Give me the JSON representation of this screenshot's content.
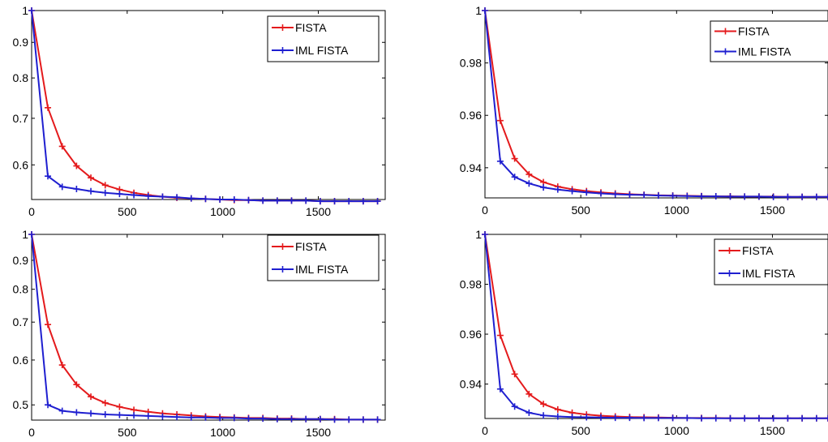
{
  "figure": {
    "background": "#ffffff",
    "red": "#e41a1c",
    "blue": "#1f1fd0"
  },
  "chart_data": [
    {
      "type": "line",
      "title": "",
      "xlabel": "",
      "ylabel": "",
      "xlim": [
        0,
        1850
      ],
      "ylim": [
        0.535,
        1.0
      ],
      "xticks": [
        0,
        500,
        1000,
        1500
      ],
      "yticks": [
        0.6,
        0.7,
        0.8,
        0.9,
        1
      ],
      "xtick_labels": [
        "0",
        "500",
        "1000",
        "1500"
      ],
      "ytick_labels": [
        "0.6",
        "0.7",
        "0.8",
        "0.9",
        "1"
      ],
      "grid": false,
      "log_y": true,
      "legend": "top-right",
      "x": [
        0,
        85,
        160,
        235,
        310,
        385,
        460,
        535,
        610,
        685,
        760,
        835,
        910,
        985,
        1060,
        1135,
        1210,
        1285,
        1360,
        1435,
        1510,
        1585,
        1660,
        1735,
        1810
      ],
      "series": [
        {
          "name": "FISTA",
          "color": "#e41a1c",
          "values": [
            1.0,
            0.725,
            0.638,
            0.598,
            0.575,
            0.561,
            0.553,
            0.547,
            0.543,
            0.54,
            0.538,
            0.537,
            0.536,
            0.535,
            0.534,
            0.534,
            0.533,
            0.533,
            0.533,
            0.533,
            0.532,
            0.532,
            0.532,
            0.532,
            0.532
          ]
        },
        {
          "name": "IML FISTA",
          "color": "#1f1fd0",
          "values": [
            1.0,
            0.578,
            0.558,
            0.554,
            0.55,
            0.547,
            0.545,
            0.543,
            0.541,
            0.54,
            0.539,
            0.537,
            0.536,
            0.535,
            0.535,
            0.534,
            0.533,
            0.533,
            0.533,
            0.533,
            0.532,
            0.532,
            0.532,
            0.532,
            0.532
          ]
        }
      ]
    },
    {
      "type": "line",
      "title": "",
      "xlabel": "",
      "ylabel": "",
      "xlim": [
        0,
        1790
      ],
      "ylim": [
        0.9285,
        1.0
      ],
      "xticks": [
        0,
        500,
        1000,
        1500
      ],
      "yticks": [
        0.94,
        0.96,
        0.98,
        1
      ],
      "xtick_labels": [
        "0",
        "500",
        "1000",
        "1500"
      ],
      "ytick_labels": [
        "0.94",
        "0.96",
        "0.98",
        "1"
      ],
      "grid": false,
      "log_y": false,
      "legend": "top-right",
      "x": [
        0,
        80,
        155,
        230,
        305,
        380,
        455,
        530,
        605,
        680,
        755,
        830,
        905,
        980,
        1055,
        1130,
        1205,
        1280,
        1355,
        1430,
        1505,
        1580,
        1655,
        1730,
        1790
      ],
      "series": [
        {
          "name": "FISTA",
          "color": "#e41a1c",
          "values": [
            1.0,
            0.958,
            0.9435,
            0.9375,
            0.9345,
            0.9328,
            0.9318,
            0.9311,
            0.9306,
            0.9302,
            0.9299,
            0.9297,
            0.9295,
            0.9294,
            0.9293,
            0.9292,
            0.9291,
            0.9291,
            0.929,
            0.929,
            0.929,
            0.9289,
            0.9289,
            0.9289,
            0.9289
          ]
        },
        {
          "name": "IML FISTA",
          "color": "#1f1fd0",
          "values": [
            1.0,
            0.9425,
            0.9365,
            0.934,
            0.9325,
            0.9317,
            0.9311,
            0.9306,
            0.9302,
            0.9299,
            0.9297,
            0.9296,
            0.9294,
            0.9293,
            0.9292,
            0.9291,
            0.9291,
            0.929,
            0.929,
            0.929,
            0.9289,
            0.9289,
            0.9289,
            0.9289,
            0.9289
          ]
        }
      ]
    },
    {
      "type": "line",
      "title": "",
      "xlabel": "",
      "ylabel": "",
      "xlim": [
        0,
        1850
      ],
      "ylim": [
        0.47,
        1.0
      ],
      "xticks": [
        0,
        500,
        1000,
        1500
      ],
      "yticks": [
        0.5,
        0.6,
        0.7,
        0.8,
        0.9,
        1
      ],
      "xtick_labels": [
        "0",
        "500",
        "1000",
        "1500"
      ],
      "ytick_labels": [
        "0.5",
        "0.6",
        "0.7",
        "0.8",
        "0.9",
        "1"
      ],
      "grid": false,
      "log_y": true,
      "legend": "top-right",
      "x": [
        0,
        85,
        160,
        235,
        310,
        385,
        460,
        535,
        610,
        685,
        760,
        835,
        910,
        985,
        1060,
        1135,
        1210,
        1285,
        1360,
        1435,
        1510,
        1585,
        1660,
        1735,
        1810
      ],
      "series": [
        {
          "name": "FISTA",
          "color": "#e41a1c",
          "values": [
            1.0,
            0.693,
            0.588,
            0.543,
            0.517,
            0.504,
            0.496,
            0.49,
            0.486,
            0.483,
            0.481,
            0.479,
            0.477,
            0.476,
            0.475,
            0.474,
            0.474,
            0.473,
            0.473,
            0.472,
            0.472,
            0.472,
            0.471,
            0.471,
            0.471
          ]
        },
        {
          "name": "IML FISTA",
          "color": "#1f1fd0",
          "values": [
            1.0,
            0.5,
            0.488,
            0.485,
            0.483,
            0.481,
            0.48,
            0.479,
            0.478,
            0.477,
            0.476,
            0.475,
            0.475,
            0.474,
            0.474,
            0.473,
            0.473,
            0.472,
            0.472,
            0.472,
            0.472,
            0.471,
            0.471,
            0.471,
            0.471
          ]
        }
      ]
    },
    {
      "type": "line",
      "title": "",
      "xlabel": "",
      "ylabel": "",
      "xlim": [
        0,
        1790
      ],
      "ylim": [
        0.9262,
        1.0
      ],
      "xticks": [
        0,
        500,
        1000,
        1500
      ],
      "yticks": [
        0.94,
        0.96,
        0.98,
        1
      ],
      "xtick_labels": [
        "0",
        "500",
        "1000",
        "1500"
      ],
      "ytick_labels": [
        "0.94",
        "0.96",
        "0.98",
        "1"
      ],
      "grid": false,
      "log_y": false,
      "legend": "top-right",
      "x": [
        0,
        80,
        155,
        230,
        305,
        380,
        455,
        530,
        605,
        680,
        755,
        830,
        905,
        980,
        1055,
        1130,
        1205,
        1280,
        1355,
        1430,
        1505,
        1580,
        1655,
        1730,
        1790
      ],
      "series": [
        {
          "name": "FISTA",
          "color": "#e41a1c",
          "values": [
            1.0,
            0.9595,
            0.944,
            0.936,
            0.932,
            0.9298,
            0.9285,
            0.9278,
            0.9273,
            0.927,
            0.9268,
            0.9267,
            0.9266,
            0.9265,
            0.9264,
            0.9264,
            0.9264,
            0.9263,
            0.9263,
            0.9263,
            0.9263,
            0.9263,
            0.9263,
            0.9263,
            0.9263
          ]
        },
        {
          "name": "IML FISTA",
          "color": "#1f1fd0",
          "values": [
            1.0,
            0.938,
            0.931,
            0.9285,
            0.9274,
            0.927,
            0.9268,
            0.9267,
            0.9266,
            0.9265,
            0.9265,
            0.9264,
            0.9264,
            0.9264,
            0.9264,
            0.9263,
            0.9263,
            0.9263,
            0.9263,
            0.9263,
            0.9263,
            0.9263,
            0.9263,
            0.9263,
            0.9263
          ]
        }
      ]
    }
  ]
}
